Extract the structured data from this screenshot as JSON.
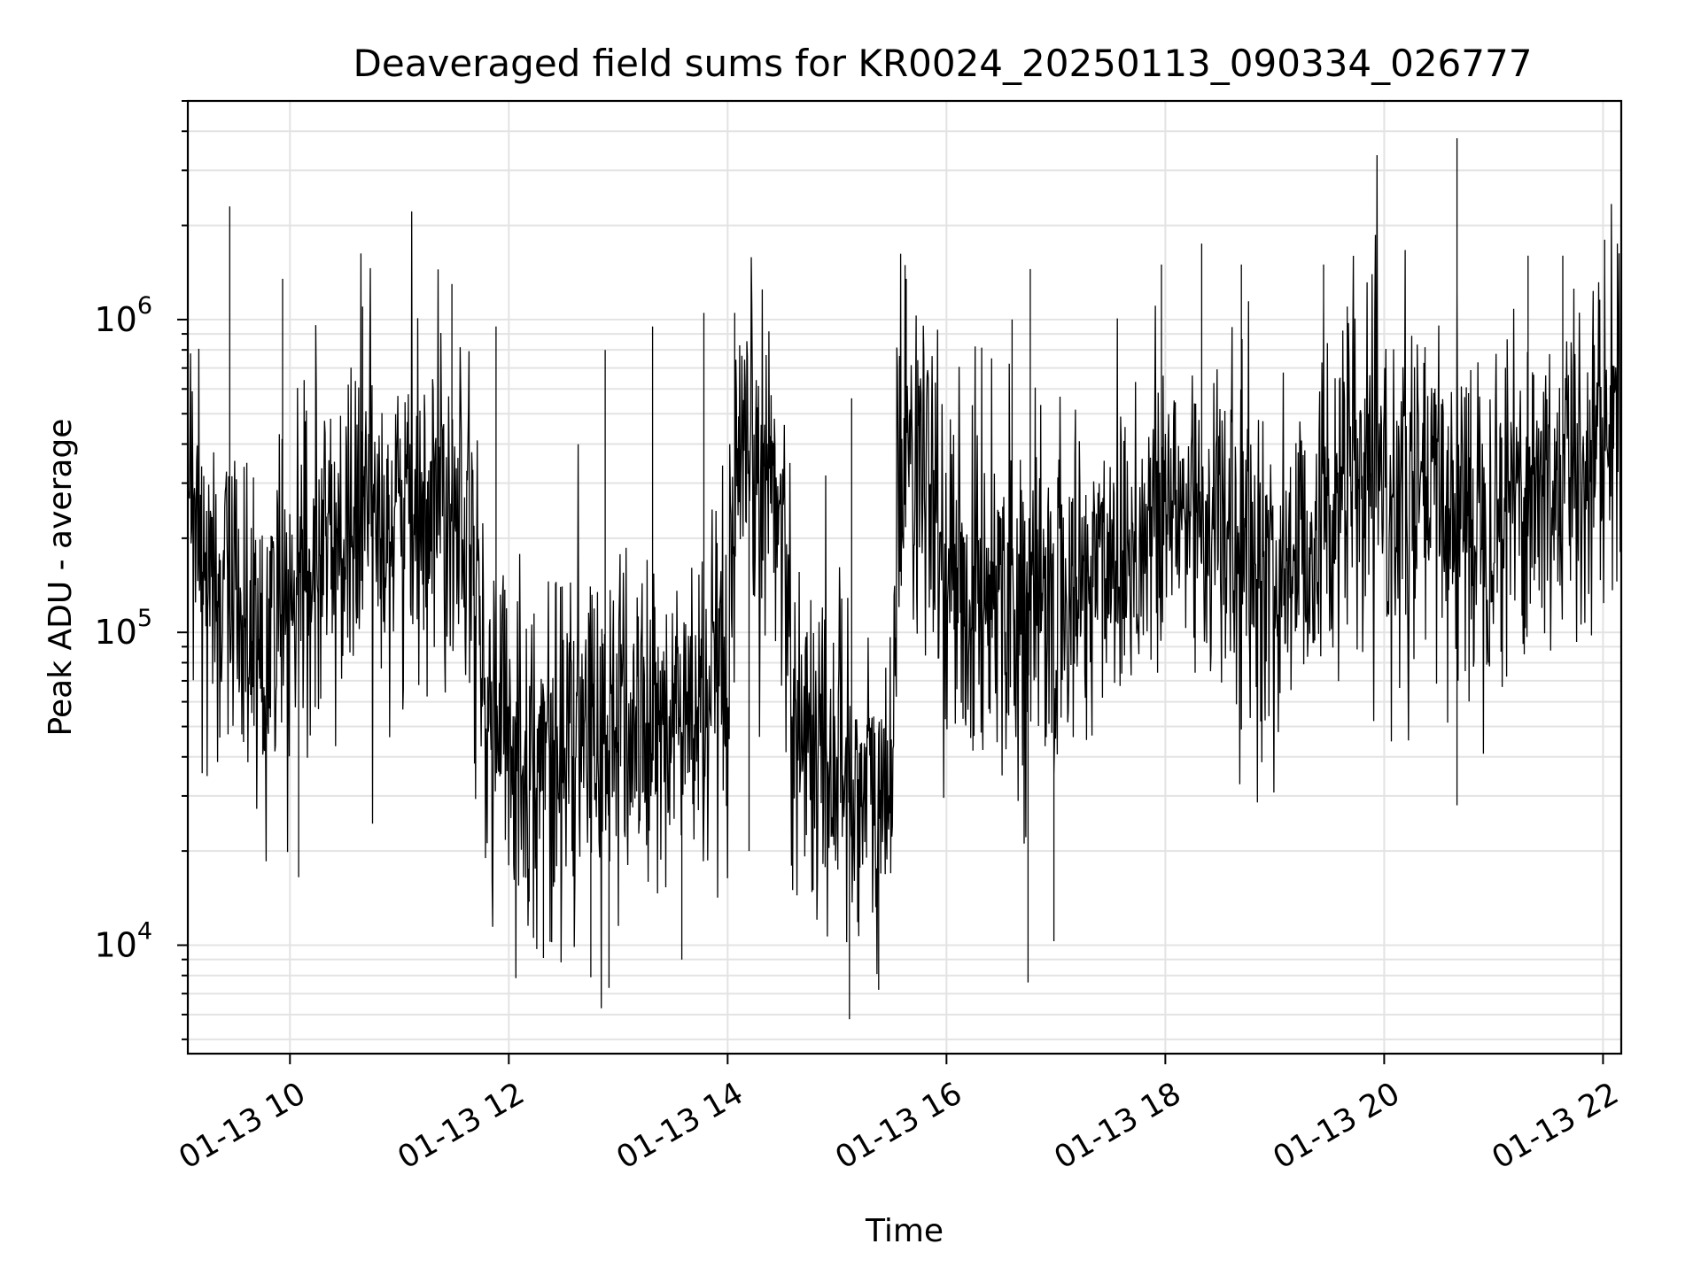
{
  "chart_data": {
    "type": "line",
    "title": "Deaveraged field sums for KR0024_20250113_090334_026777",
    "xlabel": "Time",
    "ylabel": "Peak ADU - average",
    "x_date": "2025-01-13",
    "xlim": [
      "09:04",
      "22:10"
    ],
    "ylim": [
      4500,
      5000000
    ],
    "yscale": "log",
    "grid": true,
    "legend": "none",
    "series_color": "#000000",
    "xticks": [
      {
        "time": "10:00",
        "label": "01-13 10"
      },
      {
        "time": "12:00",
        "label": "01-13 12"
      },
      {
        "time": "14:00",
        "label": "01-13 14"
      },
      {
        "time": "16:00",
        "label": "01-13 16"
      },
      {
        "time": "18:00",
        "label": "01-13 18"
      },
      {
        "time": "20:00",
        "label": "01-13 20"
      },
      {
        "time": "22:00",
        "label": "01-13 22"
      }
    ],
    "yticks": [
      {
        "value": 10000,
        "base": "10",
        "exp": "4"
      },
      {
        "value": 100000,
        "base": "10",
        "exp": "5"
      },
      {
        "value": 1000000,
        "base": "10",
        "exp": "6"
      }
    ],
    "series": [
      {
        "points": [
          [
            "09:04",
            230000
          ],
          [
            "09:15",
            150000
          ],
          [
            "09:30",
            120000
          ],
          [
            "09:45",
            90000
          ],
          [
            "10:00",
            110000
          ],
          [
            "10:15",
            160000
          ],
          [
            "10:30",
            210000
          ],
          [
            "10:45",
            260000
          ],
          [
            "11:00",
            240000
          ],
          [
            "11:15",
            280000
          ],
          [
            "11:30",
            300000
          ],
          [
            "11:40",
            260000
          ],
          [
            "11:45",
            60000
          ],
          [
            "12:00",
            45000
          ],
          [
            "12:20",
            40000
          ],
          [
            "12:40",
            45000
          ],
          [
            "13:00",
            50000
          ],
          [
            "13:20",
            48000
          ],
          [
            "13:40",
            55000
          ],
          [
            "14:00",
            60000
          ],
          [
            "14:05",
            250000
          ],
          [
            "14:15",
            330000
          ],
          [
            "14:30",
            280000
          ],
          [
            "14:35",
            60000
          ],
          [
            "14:45",
            45000
          ],
          [
            "15:00",
            40000
          ],
          [
            "15:15",
            30000
          ],
          [
            "15:25",
            25000
          ],
          [
            "15:30",
            40000
          ],
          [
            "15:35",
            500000
          ],
          [
            "15:45",
            350000
          ],
          [
            "16:00",
            150000
          ],
          [
            "16:15",
            130000
          ],
          [
            "16:30",
            160000
          ],
          [
            "16:45",
            110000
          ],
          [
            "17:00",
            120000
          ],
          [
            "17:15",
            140000
          ],
          [
            "17:30",
            190000
          ],
          [
            "17:45",
            200000
          ],
          [
            "18:00",
            230000
          ],
          [
            "18:15",
            260000
          ],
          [
            "18:30",
            210000
          ],
          [
            "18:45",
            170000
          ],
          [
            "19:00",
            140000
          ],
          [
            "19:15",
            190000
          ],
          [
            "19:30",
            260000
          ],
          [
            "19:45",
            300000
          ],
          [
            "20:00",
            280000
          ],
          [
            "20:15",
            250000
          ],
          [
            "20:30",
            270000
          ],
          [
            "20:45",
            240000
          ],
          [
            "21:00",
            260000
          ],
          [
            "21:15",
            300000
          ],
          [
            "21:30",
            280000
          ],
          [
            "21:45",
            340000
          ],
          [
            "22:00",
            450000
          ],
          [
            "22:10",
            500000
          ]
        ],
        "spikes": [
          [
            "09:27",
            2300000
          ],
          [
            "09:56",
            1350000
          ],
          [
            "10:40",
            1100000
          ],
          [
            "11:29",
            1300000
          ],
          [
            "11:53",
            950000
          ],
          [
            "12:53",
            800000
          ],
          [
            "13:19",
            950000
          ],
          [
            "13:47",
            1050000
          ],
          [
            "14:04",
            1050000
          ],
          [
            "14:12",
            20000
          ],
          [
            "15:08",
            560000
          ],
          [
            "15:07",
            5800
          ],
          [
            "15:23",
            7200
          ],
          [
            "15:38",
            1350000
          ],
          [
            "16:36",
            1000000
          ],
          [
            "16:46",
            1450000
          ],
          [
            "16:45",
            7600
          ],
          [
            "16:59",
            10300
          ],
          [
            "17:58",
            1500000
          ],
          [
            "18:20",
            1750000
          ],
          [
            "18:42",
            1500000
          ],
          [
            "19:27",
            1500000
          ],
          [
            "19:40",
            1100000
          ],
          [
            "20:40",
            3800000
          ],
          [
            "20:40",
            28000
          ],
          [
            "21:19",
            1600000
          ],
          [
            "21:38",
            1600000
          ],
          [
            "22:01",
            1800000
          ],
          [
            "22:08",
            1750000
          ],
          [
            "12:45",
            7900
          ],
          [
            "12:55",
            7300
          ],
          [
            "13:35",
            9000
          ],
          [
            "12:19",
            9100
          ],
          [
            "09:47",
            20500
          ],
          [
            "10:05",
            16500
          ]
        ]
      }
    ]
  }
}
